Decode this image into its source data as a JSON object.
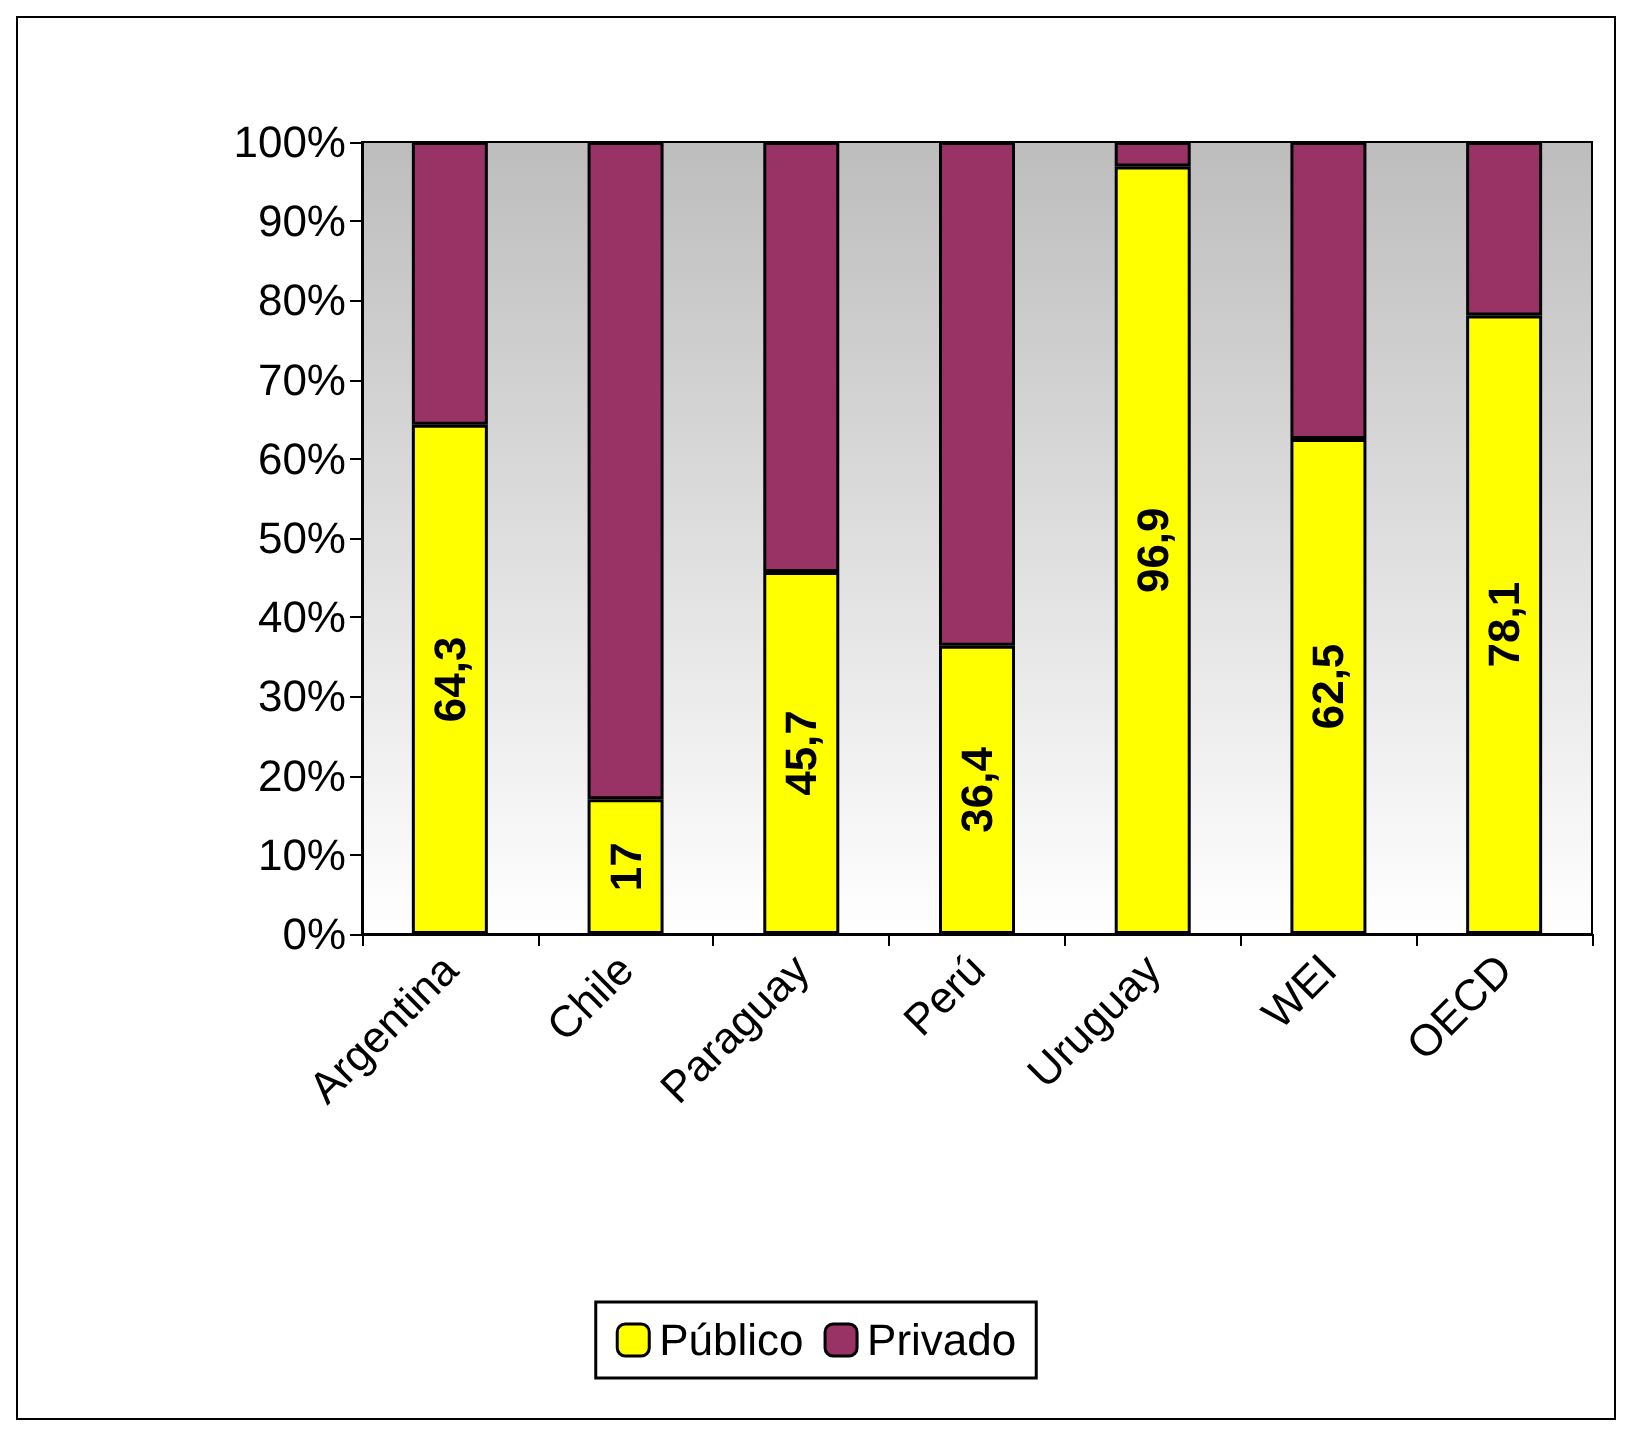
{
  "chart_data": {
    "type": "bar",
    "stacked": true,
    "categories": [
      "Argentina",
      "Chile",
      "Paraguay",
      "Perú",
      "Uruguay",
      "WEI",
      "OECD"
    ],
    "series": [
      {
        "name": "Público",
        "color": "#ffff00",
        "values": [
          64.3,
          17,
          45.7,
          36.4,
          96.9,
          62.5,
          78.1
        ],
        "value_labels": [
          "64,3",
          "17",
          "45,7",
          "36,4",
          "96,9",
          "62,5",
          "78,1"
        ]
      },
      {
        "name": "Privado",
        "color": "#993366",
        "values": [
          35.7,
          83,
          54.3,
          63.6,
          3.1,
          37.5,
          21.9
        ]
      }
    ],
    "ylim": [
      0,
      100
    ],
    "yticks": [
      {
        "value": 0,
        "label": "0%"
      },
      {
        "value": 10,
        "label": "10%"
      },
      {
        "value": 20,
        "label": "20%"
      },
      {
        "value": 30,
        "label": "30%"
      },
      {
        "value": 40,
        "label": "40%"
      },
      {
        "value": 50,
        "label": "50%"
      },
      {
        "value": 60,
        "label": "60%"
      },
      {
        "value": 70,
        "label": "70%"
      },
      {
        "value": 80,
        "label": "80%"
      },
      {
        "value": 90,
        "label": "90%"
      },
      {
        "value": 100,
        "label": "100%"
      }
    ],
    "grid": false,
    "legend": "bottom"
  }
}
